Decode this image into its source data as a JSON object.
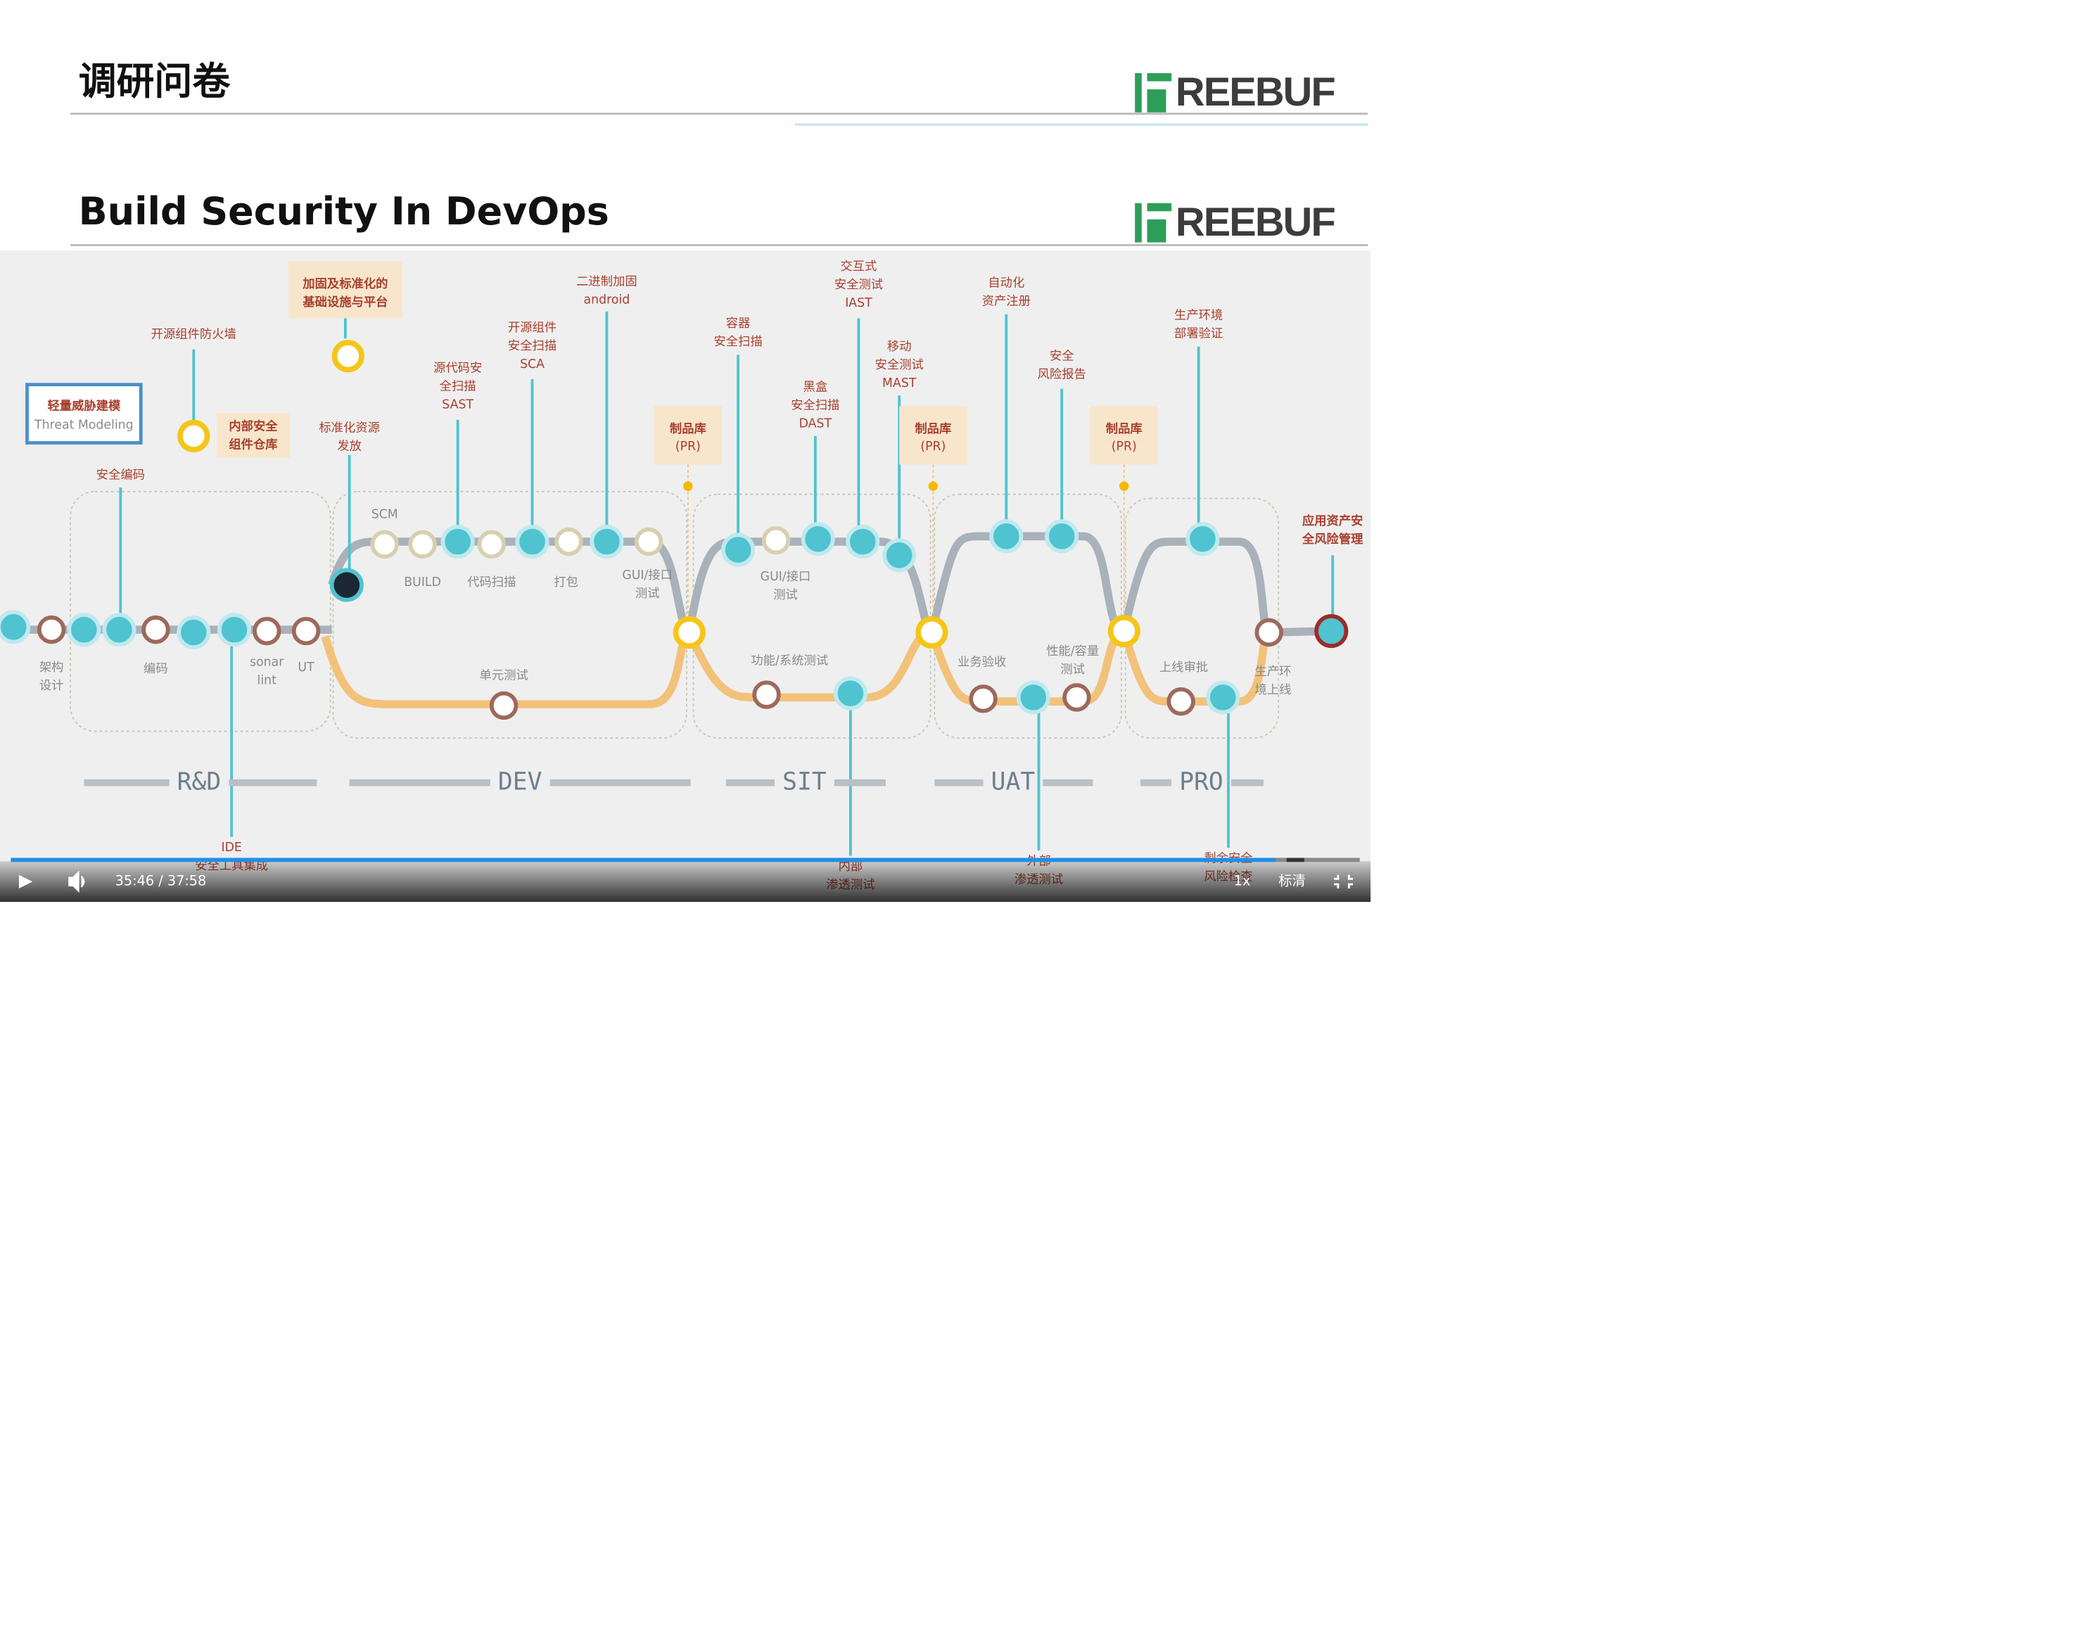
{
  "slide1": {
    "title": "调研问卷",
    "logo": "REEBUF"
  },
  "slide2": {
    "title": "Build Security In DevOps",
    "logo": "REEBUF",
    "threat_model": {
      "title": "轻量威胁建模",
      "subtitle": "Threat Modeling"
    },
    "callouts": [
      [
        "开源组件防火墙"
      ],
      [
        "加固及标准化的",
        "基础设施与平台"
      ],
      [
        "内部安全",
        "组件仓库"
      ],
      [
        "标准化资源",
        "发放"
      ],
      [
        "安全编码"
      ],
      [
        "源代码安",
        "全扫描",
        "SAST"
      ],
      [
        "开源组件",
        "安全扫描",
        "SCA"
      ],
      [
        "二进制加固",
        "android"
      ],
      [
        "容器",
        "安全扫描"
      ],
      [
        "交互式",
        "安全测试",
        "IAST"
      ],
      [
        "黑盒",
        "安全扫描",
        "DAST"
      ],
      [
        "移动",
        "安全测试",
        "MAST"
      ],
      [
        "自动化",
        "资产注册"
      ],
      [
        "安全",
        "风险报告"
      ],
      [
        "生产环境",
        "部署验证"
      ],
      [
        "应用资产安",
        "全风险管理"
      ],
      [
        "IDE",
        "安全工具集成"
      ],
      [
        "内部",
        "渗透测试"
      ],
      [
        "外部",
        "渗透测试"
      ],
      [
        "剩余安全",
        "风险检查"
      ]
    ],
    "artifacts": [
      {
        "title": "制品库",
        "sub": "(PR)"
      },
      {
        "title": "制品库",
        "sub": "(PR)"
      },
      {
        "title": "制品库",
        "sub": "(PR)"
      }
    ],
    "nodes": [
      [
        "架构",
        "设计"
      ],
      [
        "编码"
      ],
      [
        "sonar",
        "lint"
      ],
      [
        "UT"
      ],
      [
        "SCM"
      ],
      [
        "BUILD"
      ],
      [
        "代码扫描"
      ],
      [
        "打包"
      ],
      [
        "GUI/接口",
        "测试"
      ],
      [
        "单元测试"
      ],
      [
        "GUI/接口",
        "测试"
      ],
      [
        "功能/系统测试"
      ],
      [
        "业务验收"
      ],
      [
        "性能/容量",
        "测试"
      ],
      [
        "上线审批"
      ],
      [
        "生产环",
        "境上线"
      ]
    ],
    "phases": [
      "R&D",
      "DEV",
      "SIT",
      "UAT",
      "PRO"
    ]
  },
  "player": {
    "time": "35:46 / 37:58",
    "speed": "1x",
    "quality": "标清"
  }
}
